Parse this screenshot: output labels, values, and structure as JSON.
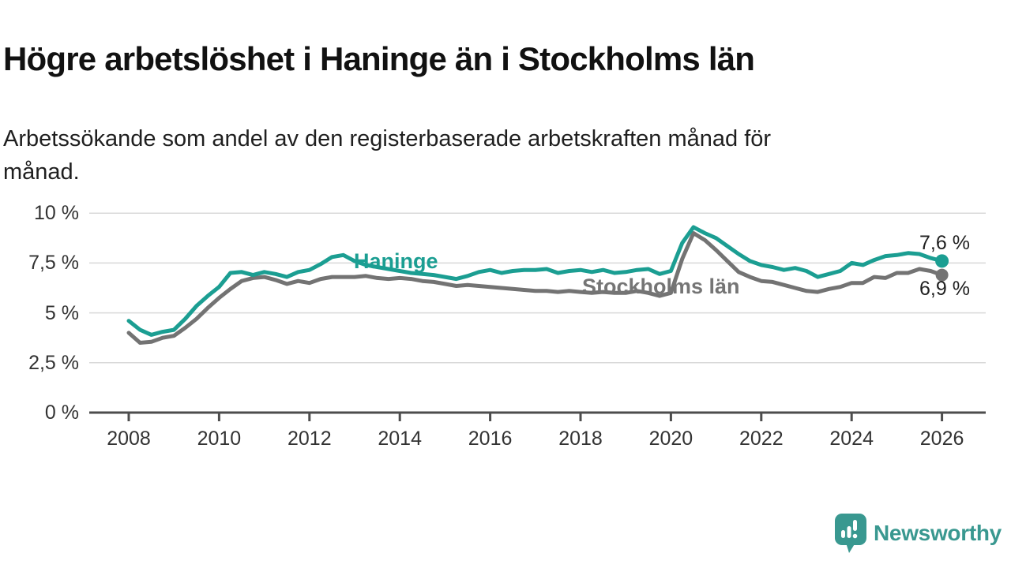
{
  "header": {
    "title": "Högre arbetslöshet i Haninge än i Stockholms län",
    "subtitle_lines": [
      "Arbetssökande som andel av den registerbaserade arbetskraften månad för",
      "månad."
    ]
  },
  "chart_data": {
    "type": "line",
    "unit": "%",
    "grid": "horizontal gridlines on",
    "legend_position": "inline labels on lines",
    "ylim": [
      0,
      10.5
    ],
    "xlim": [
      2007.1,
      2027.0
    ],
    "y_ticks": [
      10,
      7.5,
      5,
      2.5,
      0
    ],
    "y_tick_labels": [
      "10 %",
      "7,5 %",
      "5 %",
      "2,5 %",
      "0 %"
    ],
    "x_ticks": [
      2008,
      2010,
      2012,
      2014,
      2016,
      2018,
      2020,
      2022,
      2024,
      2026
    ],
    "x_tick_labels": [
      "2008",
      "2010",
      "2012",
      "2014",
      "2016",
      "2018",
      "2020",
      "2022",
      "2024",
      "2026"
    ],
    "x": [
      2008.0,
      2008.25,
      2008.5,
      2008.75,
      2009.0,
      2009.25,
      2009.5,
      2009.75,
      2010.0,
      2010.25,
      2010.5,
      2010.75,
      2011.0,
      2011.25,
      2011.5,
      2011.75,
      2012.0,
      2012.25,
      2012.5,
      2012.75,
      2013.0,
      2013.25,
      2013.5,
      2013.75,
      2014.0,
      2014.25,
      2014.5,
      2014.75,
      2015.0,
      2015.25,
      2015.5,
      2015.75,
      2016.0,
      2016.25,
      2016.5,
      2016.75,
      2017.0,
      2017.25,
      2017.5,
      2017.75,
      2018.0,
      2018.25,
      2018.5,
      2018.75,
      2019.0,
      2019.25,
      2019.5,
      2019.75,
      2020.0,
      2020.25,
      2020.5,
      2020.75,
      2021.0,
      2021.25,
      2021.5,
      2021.75,
      2022.0,
      2022.25,
      2022.5,
      2022.75,
      2023.0,
      2023.25,
      2023.5,
      2023.75,
      2024.0,
      2024.25,
      2024.5,
      2024.75,
      2025.0,
      2025.25,
      2025.5,
      2025.75,
      2026.0
    ],
    "series": [
      {
        "name": "Stockholms län",
        "color": "#737373",
        "end_label": "6,9 %",
        "end_value": 6.9,
        "values": [
          4.0,
          3.5,
          3.55,
          3.75,
          3.85,
          4.25,
          4.7,
          5.25,
          5.75,
          6.2,
          6.6,
          6.75,
          6.8,
          6.65,
          6.45,
          6.6,
          6.5,
          6.7,
          6.8,
          6.8,
          6.8,
          6.85,
          6.75,
          6.7,
          6.75,
          6.7,
          6.6,
          6.55,
          6.45,
          6.35,
          6.4,
          6.35,
          6.3,
          6.25,
          6.2,
          6.15,
          6.1,
          6.1,
          6.05,
          6.1,
          6.05,
          6.0,
          6.05,
          6.0,
          6.0,
          6.1,
          6.0,
          5.85,
          6.0,
          7.7,
          9.0,
          8.65,
          8.15,
          7.6,
          7.05,
          6.8,
          6.6,
          6.55,
          6.4,
          6.25,
          6.1,
          6.05,
          6.2,
          6.3,
          6.5,
          6.5,
          6.8,
          6.75,
          7.0,
          7.0,
          7.2,
          7.1,
          6.9
        ]
      },
      {
        "name": "Haninge",
        "color": "#1b9e92",
        "end_label": "7,6 %",
        "end_value": 7.6,
        "values": [
          4.6,
          4.15,
          3.9,
          4.05,
          4.15,
          4.7,
          5.35,
          5.85,
          6.3,
          7.0,
          7.05,
          6.9,
          7.05,
          6.95,
          6.8,
          7.05,
          7.15,
          7.45,
          7.8,
          7.9,
          7.6,
          7.4,
          7.3,
          7.2,
          7.1,
          7.0,
          6.95,
          6.9,
          6.8,
          6.7,
          6.85,
          7.05,
          7.15,
          7.0,
          7.1,
          7.15,
          7.15,
          7.2,
          7.0,
          7.1,
          7.15,
          7.05,
          7.15,
          7.0,
          7.05,
          7.15,
          7.2,
          6.95,
          7.1,
          8.5,
          9.3,
          9.0,
          8.75,
          8.35,
          7.95,
          7.6,
          7.4,
          7.3,
          7.15,
          7.25,
          7.1,
          6.8,
          6.95,
          7.1,
          7.5,
          7.4,
          7.65,
          7.85,
          7.9,
          8.0,
          7.95,
          7.75,
          7.6
        ]
      }
    ],
    "colors": {
      "gridline": "#d9d9d9",
      "axis": "#4d4d4d",
      "tick_text": "#333333",
      "haninge_teal": "#1b9e92",
      "stockholm_gray": "#737373"
    }
  },
  "footer": {
    "brand": "Newsworthy",
    "brand_color": "#399890"
  }
}
